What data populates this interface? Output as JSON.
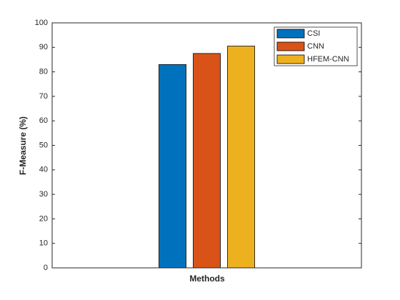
{
  "chart_data": {
    "type": "bar",
    "categories": [
      null
    ],
    "series": [
      {
        "name": "CSI",
        "color": "#0072bd",
        "values": [
          83
        ]
      },
      {
        "name": "CNN",
        "color": "#d95319",
        "values": [
          87.5
        ]
      },
      {
        "name": "HFEM-CNN",
        "color": "#edb120",
        "values": [
          90.5
        ]
      }
    ],
    "x_label": "Methods",
    "y_label": "F-Measure (%)",
    "ylim": [
      0,
      100
    ],
    "yticks": [
      0,
      10,
      20,
      30,
      40,
      50,
      60,
      70,
      80,
      90,
      100
    ],
    "grid": false,
    "legend": "top-right"
  }
}
